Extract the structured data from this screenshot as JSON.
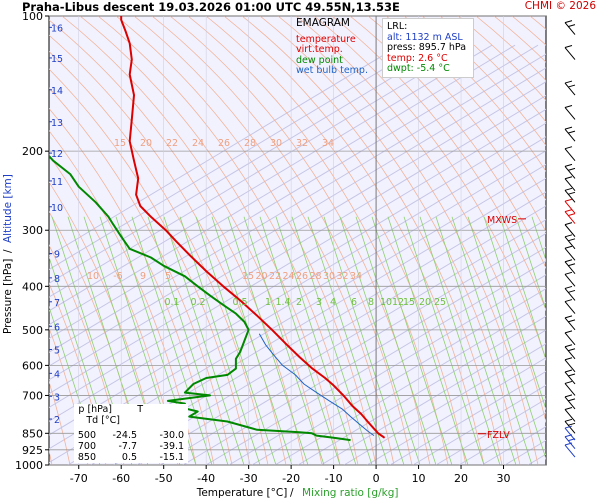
{
  "header": {
    "title": "Praha-Libus   descent   19.03.2026 01:00 UTC  49.55N,13.53E",
    "credit": "CHMI © 2026"
  },
  "legend": {
    "title": "EMAGRAM",
    "items": [
      {
        "label": "temperature",
        "color": "#dd0000"
      },
      {
        "label": "virt.temp.",
        "color": "#dd0000"
      },
      {
        "label": "dew point",
        "color": "#008800"
      },
      {
        "label": "wet bulb temp.",
        "color": "#1f63c6"
      }
    ]
  },
  "lrl": {
    "title": "LRL:",
    "alt": "alt: 1132 m ASL",
    "press": "press: 895.7 hPa",
    "temp": "temp: 2.6 °C",
    "dwpt": "dwpt: -5.4 °C",
    "colors": {
      "alt": "#1f3fc6",
      "press": "#000000",
      "temp": "#dd0000",
      "dwpt": "#008800"
    }
  },
  "level_table": {
    "headers": [
      "p [hPa]",
      "T",
      "Td [°C]"
    ],
    "rows": [
      [
        "500",
        "-24.5",
        "-30.0"
      ],
      [
        "700",
        "-7.7",
        "-39.1"
      ],
      [
        "850",
        "0.5",
        "-15.1"
      ]
    ]
  },
  "markers": [
    {
      "label": "MXWS",
      "pressure": 283,
      "color": "#dd0000"
    },
    {
      "label": "FZLV",
      "pressure": 852,
      "color": "#dd0000"
    }
  ],
  "chart_data": {
    "type": "line",
    "title": "EMAGRAM",
    "xlabel": "Temperature [°C]",
    "xlabel_secondary": "Mixing ratio [g/kg]",
    "ylabel": "Pressure [hPa]",
    "ylabel_secondary": "Altitude [km]",
    "y_scale": "log",
    "xlim": [
      -77,
      40
    ],
    "ylim": [
      1000,
      100
    ],
    "x_ticks": [
      -70,
      -60,
      -50,
      -40,
      -30,
      -20,
      -10,
      0,
      10,
      20,
      30
    ],
    "pressure_ticks": [
      100,
      200,
      300,
      400,
      500,
      600,
      700,
      850,
      925,
      1000
    ],
    "altitude_ticks": [
      {
        "km": "2",
        "p": 790
      },
      {
        "km": "3",
        "p": 703
      },
      {
        "km": "4",
        "p": 625
      },
      {
        "km": "5",
        "p": 553
      },
      {
        "km": "6",
        "p": 491
      },
      {
        "km": "7",
        "p": 433
      },
      {
        "km": "8",
        "p": 383
      },
      {
        "km": "9",
        "p": 338
      },
      {
        "km": "10",
        "p": 266
      },
      {
        "km": "11",
        "p": 233
      },
      {
        "km": "12",
        "p": 202
      },
      {
        "km": "13",
        "p": 172
      },
      {
        "km": "14",
        "p": 146
      },
      {
        "km": "15",
        "p": 124
      },
      {
        "km": "16",
        "p": 106
      }
    ],
    "mixing_ratio_labels_upper": [
      "10",
      "-6",
      "9",
      "5",
      "15",
      "20",
      "22",
      "24",
      "26",
      "28",
      "30",
      "32",
      "34"
    ],
    "mixing_ratio_labels_top": [
      "15",
      "20",
      "22",
      "24",
      "26",
      "28",
      "30",
      "32",
      "34"
    ],
    "mixing_ratio_labels_lower": [
      "0.1",
      "0.2",
      "0.5",
      "1",
      "1.4",
      "2",
      "3",
      "4",
      "6",
      "8",
      "10",
      "12",
      "15",
      "20",
      "25"
    ],
    "series": [
      {
        "name": "temperature",
        "color": "#dd0000",
        "points": [
          [
            2,
            870
          ],
          [
            0.5,
            850
          ],
          [
            -0.5,
            830
          ],
          [
            -2,
            800
          ],
          [
            -3.5,
            770
          ],
          [
            -5.5,
            740
          ],
          [
            -7.7,
            700
          ],
          [
            -9,
            680
          ],
          [
            -10,
            665
          ],
          [
            -12,
            640
          ],
          [
            -15,
            610
          ],
          [
            -18,
            575
          ],
          [
            -21,
            540
          ],
          [
            -24.5,
            500
          ],
          [
            -28,
            465
          ],
          [
            -32,
            430
          ],
          [
            -36,
            400
          ],
          [
            -40,
            370
          ],
          [
            -44,
            340
          ],
          [
            -47,
            318
          ],
          [
            -49.5,
            300
          ],
          [
            -53,
            280
          ],
          [
            -55.5,
            265
          ],
          [
            -56.5,
            250
          ],
          [
            -56,
            230
          ],
          [
            -57,
            210
          ],
          [
            -58,
            190
          ],
          [
            -57.5,
            170
          ],
          [
            -57,
            150
          ],
          [
            -58,
            135
          ],
          [
            -57.5,
            125
          ],
          [
            -58,
            115
          ],
          [
            -59,
            108
          ],
          [
            -60,
            102
          ],
          [
            -60,
            100
          ]
        ]
      },
      {
        "name": "dew point",
        "color": "#008800",
        "points": [
          [
            -6,
            880
          ],
          [
            -10,
            870
          ],
          [
            -14,
            860
          ],
          [
            -15.1,
            850
          ],
          [
            -18,
            845
          ],
          [
            -28,
            835
          ],
          [
            -35,
            800
          ],
          [
            -44,
            780
          ],
          [
            -42,
            760
          ],
          [
            -47,
            740
          ],
          [
            -45,
            730
          ],
          [
            -49,
            720
          ],
          [
            -39.1,
            700
          ],
          [
            -45,
            690
          ],
          [
            -43,
            660
          ],
          [
            -40,
            640
          ],
          [
            -35,
            630
          ],
          [
            -33,
            610
          ],
          [
            -33,
            580
          ],
          [
            -32,
            560
          ],
          [
            -30,
            500
          ],
          [
            -31,
            480
          ],
          [
            -33,
            460
          ],
          [
            -36,
            440
          ],
          [
            -39,
            420
          ],
          [
            -42,
            400
          ],
          [
            -45,
            380
          ],
          [
            -50,
            360
          ],
          [
            -53,
            345
          ],
          [
            -58,
            330
          ],
          [
            -60,
            310
          ],
          [
            -62,
            290
          ],
          [
            -63,
            280
          ],
          [
            -66,
            260
          ],
          [
            -70,
            240
          ],
          [
            -72,
            225
          ],
          [
            -76,
            210
          ],
          [
            -78,
            200
          ]
        ]
      },
      {
        "name": "wet bulb temp.",
        "color": "#1f63c6",
        "points": [
          [
            -0.5,
            860
          ],
          [
            -2,
            840
          ],
          [
            -4,
            810
          ],
          [
            -6,
            780
          ],
          [
            -8,
            750
          ],
          [
            -11,
            720
          ],
          [
            -14,
            690
          ],
          [
            -17,
            660
          ],
          [
            -19,
            630
          ],
          [
            -22,
            600
          ],
          [
            -24,
            570
          ],
          [
            -26,
            540
          ],
          [
            -27.5,
            510
          ]
        ]
      }
    ]
  }
}
